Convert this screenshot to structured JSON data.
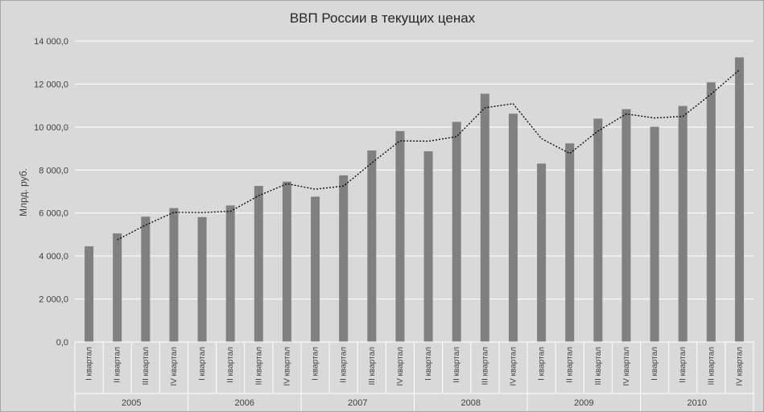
{
  "chart_data": {
    "type": "bar",
    "title": "ВВП России в текущих ценах",
    "xlabel": "",
    "ylabel": "Млрд. руб.",
    "ylim": [
      0,
      14000
    ],
    "yticks": [
      0,
      2000,
      4000,
      6000,
      8000,
      10000,
      12000,
      14000
    ],
    "ytick_labels": [
      "0,0",
      "2 000,0",
      "4 000,0",
      "6 000,0",
      "8 000,0",
      "10 000,0",
      "12 000,0",
      "14 000,0"
    ],
    "grid": true,
    "categories": [
      "I квартал",
      "II квартал",
      "III квартал",
      "IV квартал",
      "I квартал",
      "II квартал",
      "III квартал",
      "IV квартал",
      "I квартал",
      "II квартал",
      "III квартал",
      "IV квартал",
      "I квартал",
      "II квартал",
      "III квартал",
      "IV квартал",
      "I квартал",
      "II квартал",
      "III квартал",
      "IV квартал",
      "I квартал",
      "II квартал",
      "III квартал",
      "IV квартал"
    ],
    "years": [
      "2005",
      "2006",
      "2007",
      "2008",
      "2009",
      "2010"
    ],
    "series": [
      {
        "type": "bar",
        "color": "#808080",
        "values": [
          4450,
          5050,
          5830,
          6230,
          5810,
          6350,
          7260,
          7460,
          6760,
          7750,
          8910,
          9810,
          8870,
          10240,
          11550,
          10620,
          8300,
          9240,
          10390,
          10830,
          10010,
          10980,
          12080,
          13240
        ]
      },
      {
        "type": "line",
        "style": "dotted",
        "color": "#000000",
        "values": [
          null,
          4750,
          5440,
          6030,
          6020,
          6080,
          6805,
          7360,
          7110,
          7255,
          8330,
          9360,
          9340,
          9555,
          10895,
          11085,
          9460,
          8770,
          9815,
          10610,
          10420,
          10495,
          11530,
          12660
        ]
      }
    ]
  }
}
